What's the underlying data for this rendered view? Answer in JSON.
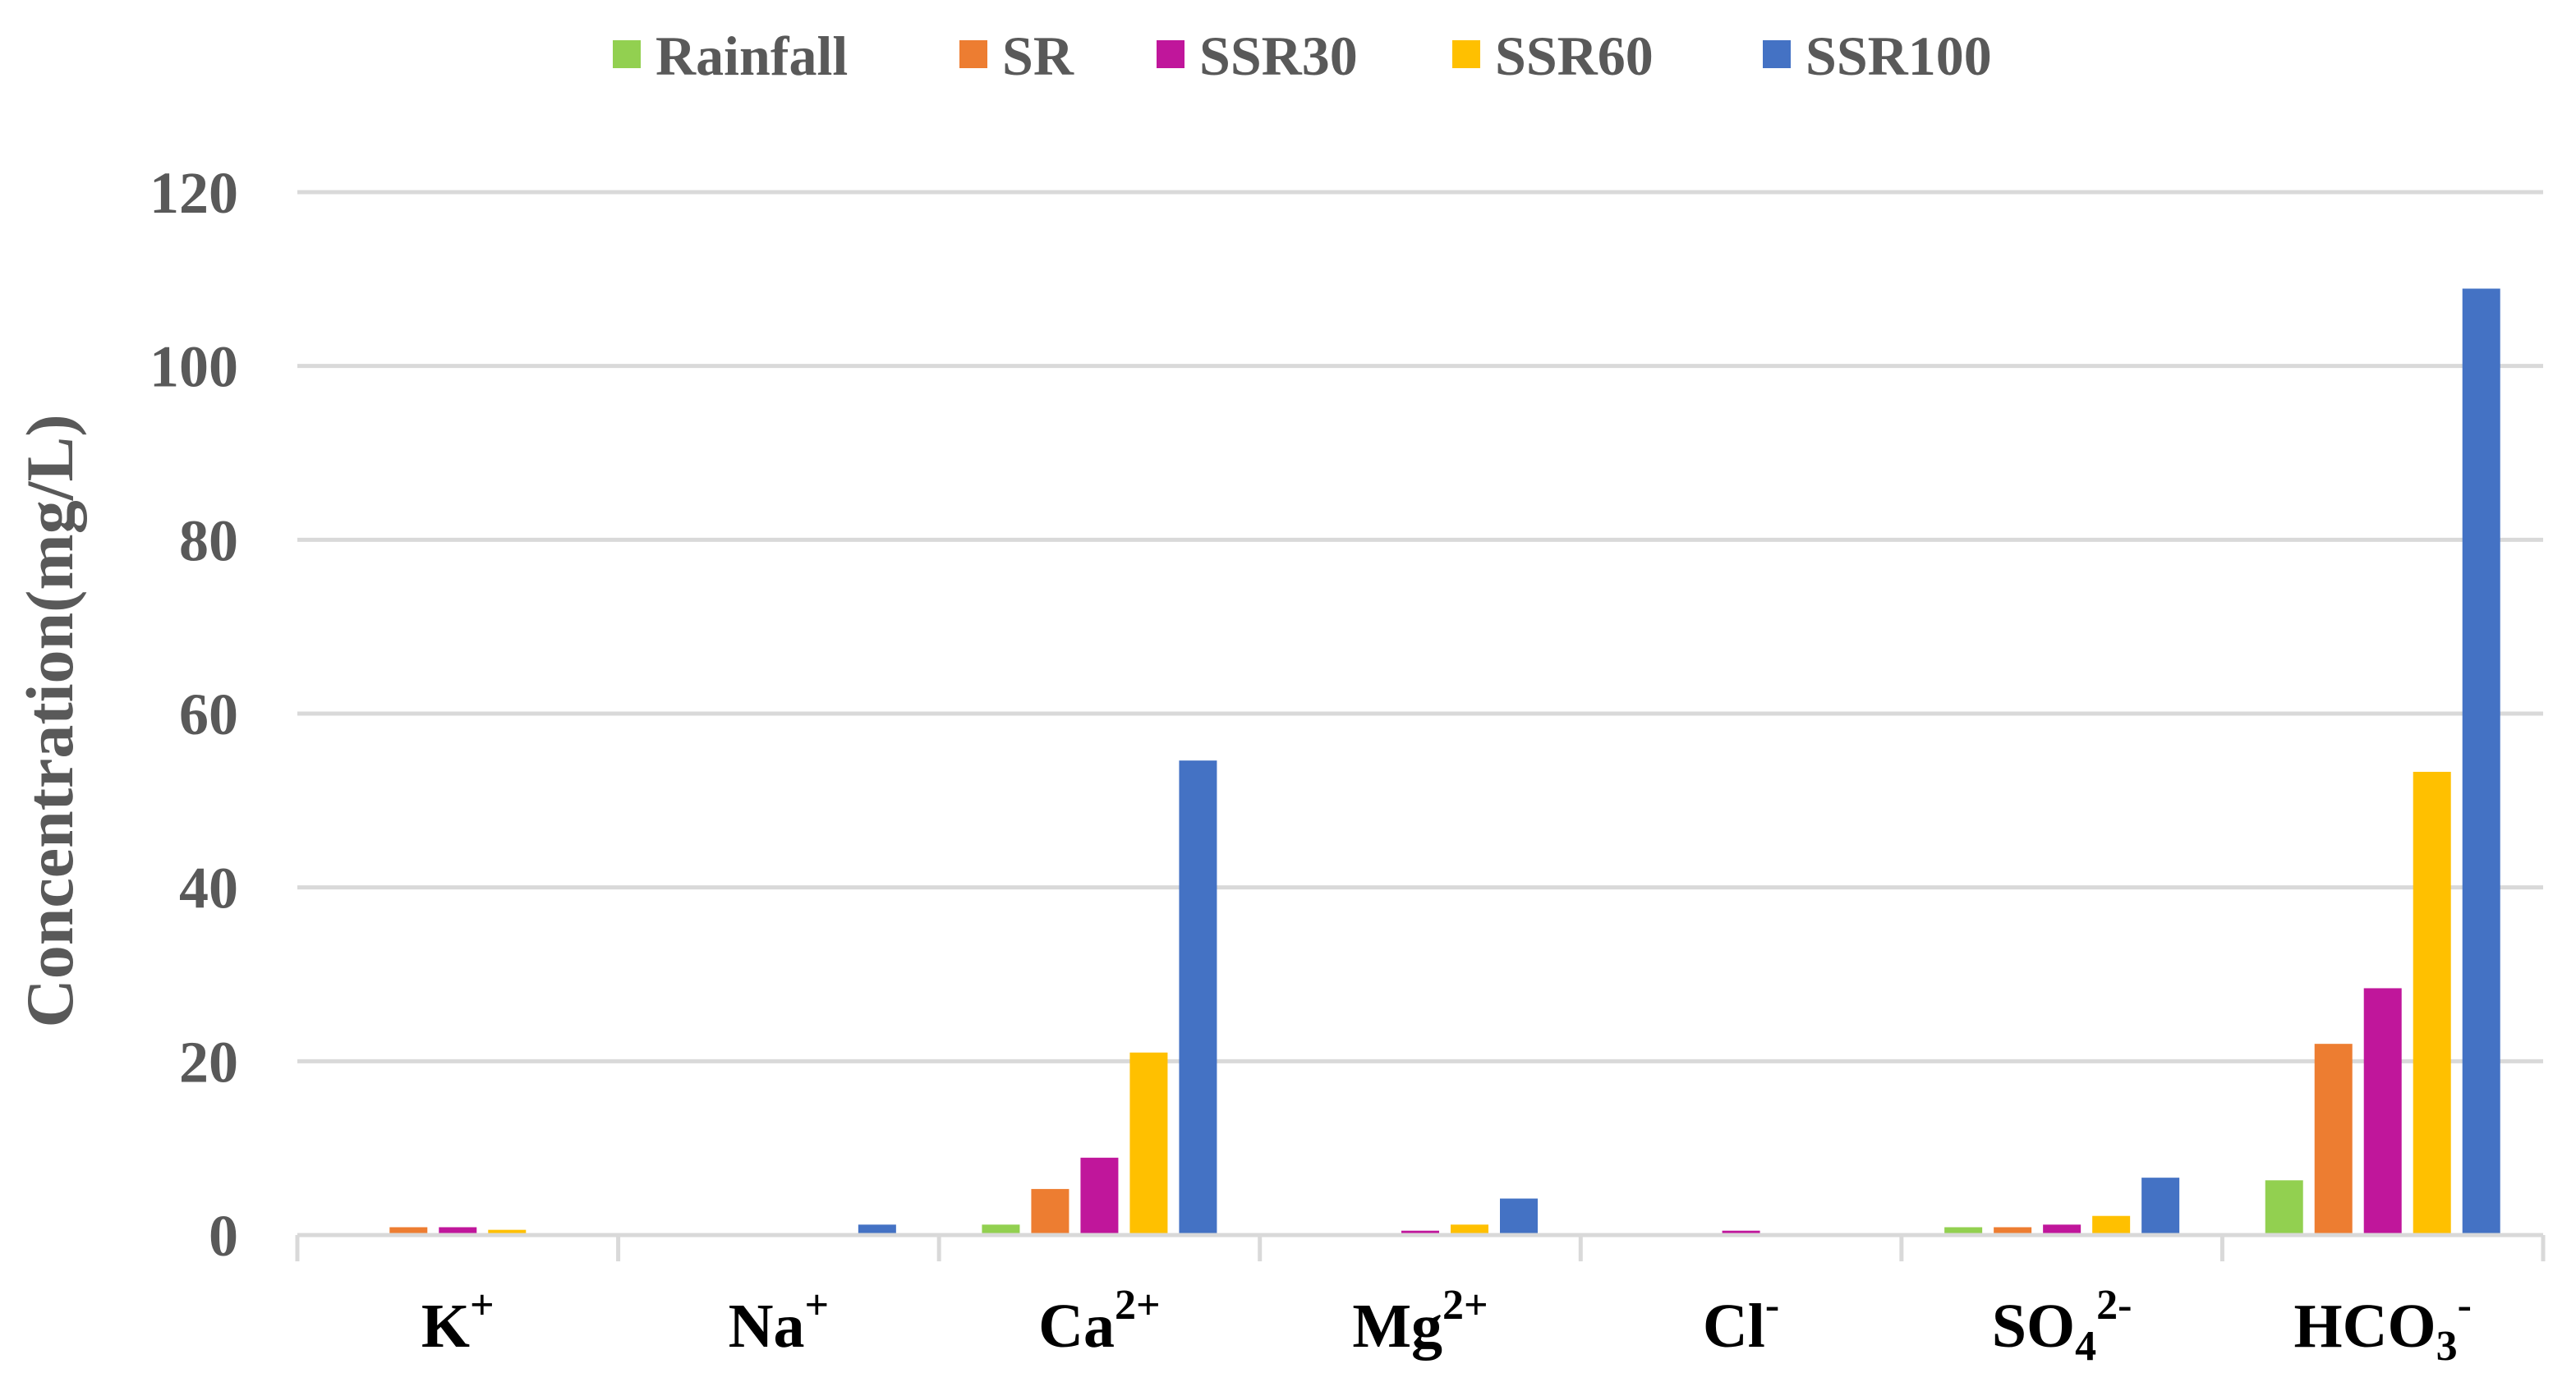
{
  "chart_data": {
    "type": "bar",
    "title": "",
    "xlabel": "",
    "ylabel": "Concentration(mg/L)",
    "ylim": [
      0,
      120
    ],
    "yticks": [
      0,
      20,
      40,
      60,
      80,
      100,
      120
    ],
    "grid": true,
    "legend_position": "top",
    "categories": [
      {
        "base": "K",
        "sub": "",
        "sup": "+"
      },
      {
        "base": "Na",
        "sub": "",
        "sup": "+"
      },
      {
        "base": "Ca",
        "sub": "",
        "sup": "2+"
      },
      {
        "base": "Mg",
        "sub": "",
        "sup": "2+"
      },
      {
        "base": "Cl",
        "sub": "",
        "sup": "-"
      },
      {
        "base": "SO",
        "sub": "4",
        "sup": "2-"
      },
      {
        "base": "HCO",
        "sub": "3",
        "sup": "-"
      }
    ],
    "series": [
      {
        "name": "Rainfall",
        "color": "#92D050",
        "values": [
          0.1,
          0.1,
          1.2,
          0.2,
          0.1,
          0.9,
          6.3
        ]
      },
      {
        "name": "SR",
        "color": "#ED7D31",
        "values": [
          0.9,
          0.1,
          5.3,
          0.2,
          0.2,
          0.9,
          22.0
        ]
      },
      {
        "name": "SSR30",
        "color": "#C0169B",
        "values": [
          0.9,
          0.1,
          8.9,
          0.5,
          0.5,
          1.2,
          28.4
        ]
      },
      {
        "name": "SSR60",
        "color": "#FFC000",
        "values": [
          0.6,
          0.2,
          21.0,
          1.2,
          0.1,
          2.2,
          53.3
        ]
      },
      {
        "name": "SSR100",
        "color": "#4472C4",
        "values": [
          0.2,
          1.2,
          54.6,
          4.2,
          0.1,
          6.6,
          108.9
        ]
      }
    ]
  }
}
